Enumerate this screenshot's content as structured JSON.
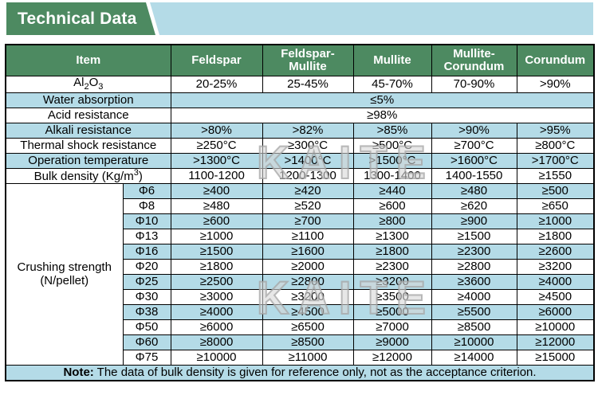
{
  "banner": {
    "title": "Technical Data"
  },
  "watermark": {
    "text": "KAITE"
  },
  "colors": {
    "green": "#4d8a61",
    "light_blue": "#b4dbe7",
    "border": "#000000",
    "header_text": "#ffffff"
  },
  "table": {
    "columns": [
      "Item",
      "Feldspar",
      "Feldspar-Mullite",
      "Mullite",
      "Mullite-Corundum",
      "Corundum"
    ],
    "simple_rows": [
      {
        "label_parts": [
          [
            "Al",
            ""
          ],
          [
            "2",
            "sub"
          ],
          [
            "O",
            ""
          ],
          [
            "3",
            "sub"
          ]
        ],
        "merged": false,
        "values": [
          "20-25%",
          "25-45%",
          "45-70%",
          "70-90%",
          ">90%"
        ]
      },
      {
        "label_parts": [
          [
            "Water absorption",
            ""
          ]
        ],
        "merged": true,
        "values": [
          "≤5%"
        ]
      },
      {
        "label_parts": [
          [
            "Acid resistance",
            ""
          ]
        ],
        "merged": true,
        "values": [
          "≥98%"
        ]
      },
      {
        "label_parts": [
          [
            "Alkali resistance",
            ""
          ]
        ],
        "merged": false,
        "values": [
          ">80%",
          ">82%",
          ">85%",
          ">90%",
          ">95%"
        ]
      },
      {
        "label_parts": [
          [
            "Thermal shock resistance",
            ""
          ]
        ],
        "merged": false,
        "values": [
          "≥250°C",
          "≥300°C",
          "≥500°C",
          "≥700°C",
          "≥800°C"
        ]
      },
      {
        "label_parts": [
          [
            "Operation temperature",
            ""
          ]
        ],
        "merged": false,
        "values": [
          ">1300°C",
          ">1400°C",
          ">1500°C",
          ">1600°C",
          ">1700°C"
        ]
      },
      {
        "label_parts": [
          [
            "Bulk density (Kg/m",
            ""
          ],
          [
            "3",
            "sup"
          ],
          [
            ")",
            ""
          ]
        ],
        "merged": false,
        "values": [
          "1100-1200",
          "1200-1300",
          "1300-1400",
          "1400-1550",
          "≥1550"
        ]
      }
    ],
    "crushing": {
      "label": "Crushing strength (N/pellet)",
      "rows": [
        {
          "size": "Φ6",
          "values": [
            "≥400",
            "≥420",
            "≥440",
            "≥480",
            "≥500"
          ]
        },
        {
          "size": "Φ8",
          "values": [
            "≥480",
            "≥520",
            "≥600",
            "≥620",
            "≥650"
          ]
        },
        {
          "size": "Φ10",
          "values": [
            "≥600",
            "≥700",
            "≥800",
            "≥900",
            "≥1000"
          ]
        },
        {
          "size": "Φ13",
          "values": [
            "≥1000",
            "≥1100",
            "≥1300",
            "≥1500",
            "≥1800"
          ]
        },
        {
          "size": "Φ16",
          "values": [
            "≥1500",
            "≥1600",
            "≥1800",
            "≥2300",
            "≥2600"
          ]
        },
        {
          "size": "Φ20",
          "values": [
            "≥1800",
            "≥2000",
            "≥2300",
            "≥2800",
            "≥3200"
          ]
        },
        {
          "size": "Φ25",
          "values": [
            "≥2500",
            "≥2800",
            "≥3200",
            "≥3600",
            "≥4000"
          ]
        },
        {
          "size": "Φ30",
          "values": [
            "≥3000",
            "≥3200",
            "≥3500",
            "≥4000",
            "≥4500"
          ]
        },
        {
          "size": "Φ38",
          "values": [
            "≥4000",
            "≥4500",
            "≥5000",
            "≥5500",
            "≥6000"
          ]
        },
        {
          "size": "Φ50",
          "values": [
            "≥6000",
            "≥6500",
            "≥7000",
            "≥8500",
            "≥10000"
          ]
        },
        {
          "size": "Φ60",
          "values": [
            "≥8000",
            "≥8500",
            "≥9000",
            "≥10000",
            "≥12000"
          ]
        },
        {
          "size": "Φ75",
          "values": [
            "≥10000",
            "≥11000",
            "≥12000",
            "≥14000",
            "≥15000"
          ]
        }
      ]
    },
    "note": {
      "label": "Note:",
      "text": "The data of bulk density is given for reference only, not as the acceptance criterion."
    }
  }
}
